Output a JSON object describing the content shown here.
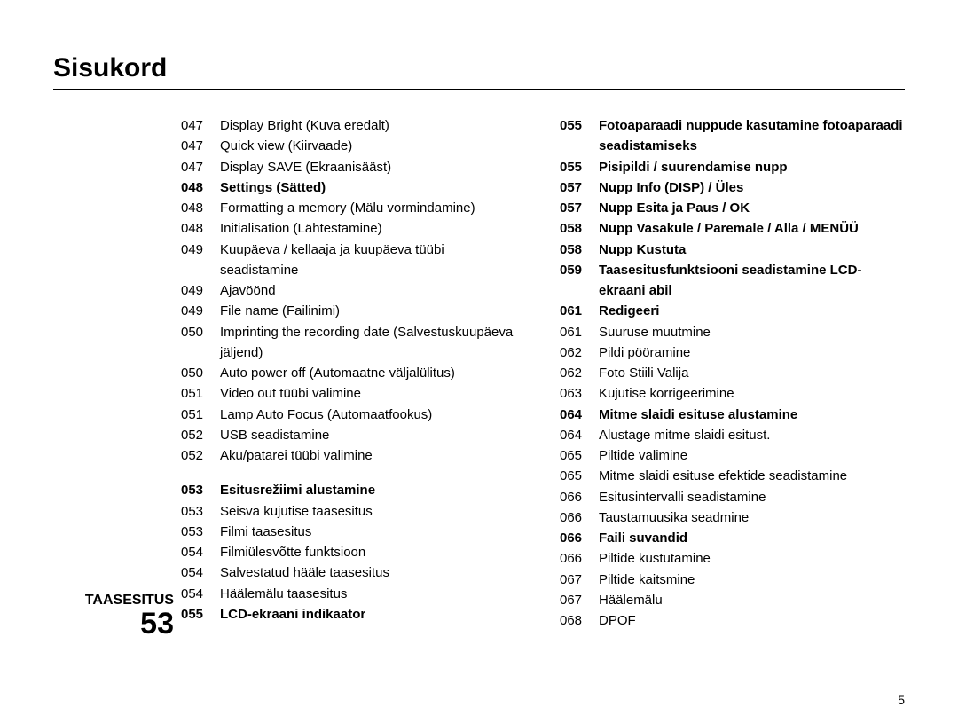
{
  "title": "Sisukord",
  "page_number": "5",
  "section": {
    "label": "TAASESITUS",
    "number": "53"
  },
  "columns": {
    "left": [
      {
        "page": "047",
        "text": "Display Bright (Kuva eredalt)",
        "bold": false
      },
      {
        "page": "047",
        "text": "Quick view (Kiirvaade)",
        "bold": false
      },
      {
        "page": "047",
        "text": "Display SAVE (Ekraanisääst)",
        "bold": false
      },
      {
        "page": "048",
        "text": "Settings (Sätted)",
        "bold": true
      },
      {
        "page": "048",
        "text": "Formatting a memory (Mälu vormindamine)",
        "bold": false
      },
      {
        "page": "048",
        "text": "Initialisation (Lähtestamine)",
        "bold": false
      },
      {
        "page": "049",
        "text": "Kuupäeva / kellaaja ja kuupäeva tüübi seadistamine",
        "bold": false
      },
      {
        "page": "049",
        "text": "Ajavöönd",
        "bold": false
      },
      {
        "page": "049",
        "text": "File name (Failinimi)",
        "bold": false
      },
      {
        "page": "050",
        "text": "Imprinting the recording date (Salvestuskuupäeva jäljend)",
        "bold": false
      },
      {
        "page": "050",
        "text": "Auto power off (Automaatne väljalülitus)",
        "bold": false
      },
      {
        "page": "051",
        "text": "Video out tüübi valimine",
        "bold": false
      },
      {
        "page": "051",
        "text": "Lamp Auto Focus (Automaatfookus)",
        "bold": false
      },
      {
        "page": "052",
        "text": "USB seadistamine",
        "bold": false
      },
      {
        "page": "052",
        "text": "Aku/patarei tüübi valimine",
        "bold": false
      },
      {
        "page": "",
        "text": "",
        "bold": false,
        "spacer": true
      },
      {
        "page": "053",
        "text": "Esitusrežiimi alustamine",
        "bold": true
      },
      {
        "page": "053",
        "text": "Seisva kujutise taasesitus",
        "bold": false
      },
      {
        "page": "053",
        "text": "Filmi taasesitus",
        "bold": false
      },
      {
        "page": "054",
        "text": "Filmiülesvõtte funktsioon",
        "bold": false
      },
      {
        "page": "054",
        "text": "Salvestatud hääle taasesitus",
        "bold": false
      },
      {
        "page": "054",
        "text": "Häälemälu taasesitus",
        "bold": false
      },
      {
        "page": "055",
        "text": "LCD-ekraani indikaator",
        "bold": true
      }
    ],
    "right": [
      {
        "page": "055",
        "text": "Fotoaparaadi nuppude kasutamine fotoaparaadi seadistamiseks",
        "bold": true
      },
      {
        "page": "055",
        "text": "Pisipildi / suurendamise nupp",
        "bold": true
      },
      {
        "page": "057",
        "text": "Nupp Info (DISP) / Üles",
        "bold": true
      },
      {
        "page": "057",
        "text": "Nupp Esita ja Paus / OK",
        "bold": true
      },
      {
        "page": "058",
        "text": "Nupp Vasakule / Paremale / Alla / MENÜÜ",
        "bold": true
      },
      {
        "page": "058",
        "text": "Nupp Kustuta",
        "bold": true
      },
      {
        "page": "059",
        "text": "Taasesitusfunktsiooni seadistamine LCD-ekraani abil",
        "bold": true
      },
      {
        "page": "061",
        "text": "Redigeeri",
        "bold": true
      },
      {
        "page": "061",
        "text": "Suuruse muutmine",
        "bold": false
      },
      {
        "page": "062",
        "text": "Pildi pööramine",
        "bold": false
      },
      {
        "page": "062",
        "text": "Foto Stiili Valija",
        "bold": false
      },
      {
        "page": "063",
        "text": "Kujutise korrigeerimine",
        "bold": false
      },
      {
        "page": "064",
        "text": "Mitme slaidi esituse alustamine",
        "bold": true
      },
      {
        "page": "064",
        "text": "Alustage mitme slaidi esitust.",
        "bold": false
      },
      {
        "page": "065",
        "text": "Piltide valimine",
        "bold": false
      },
      {
        "page": "065",
        "text": "Mitme slaidi esituse efektide seadistamine",
        "bold": false
      },
      {
        "page": "066",
        "text": "Esitusintervalli seadistamine",
        "bold": false
      },
      {
        "page": "066",
        "text": "Taustamuusika seadmine",
        "bold": false
      },
      {
        "page": "066",
        "text": "Faili suvandid",
        "bold": true
      },
      {
        "page": "066",
        "text": "Piltide kustutamine",
        "bold": false
      },
      {
        "page": "067",
        "text": "Piltide kaitsmine",
        "bold": false
      },
      {
        "page": "067",
        "text": "Häälemälu",
        "bold": false
      },
      {
        "page": "068",
        "text": "DPOF",
        "bold": false
      }
    ]
  }
}
